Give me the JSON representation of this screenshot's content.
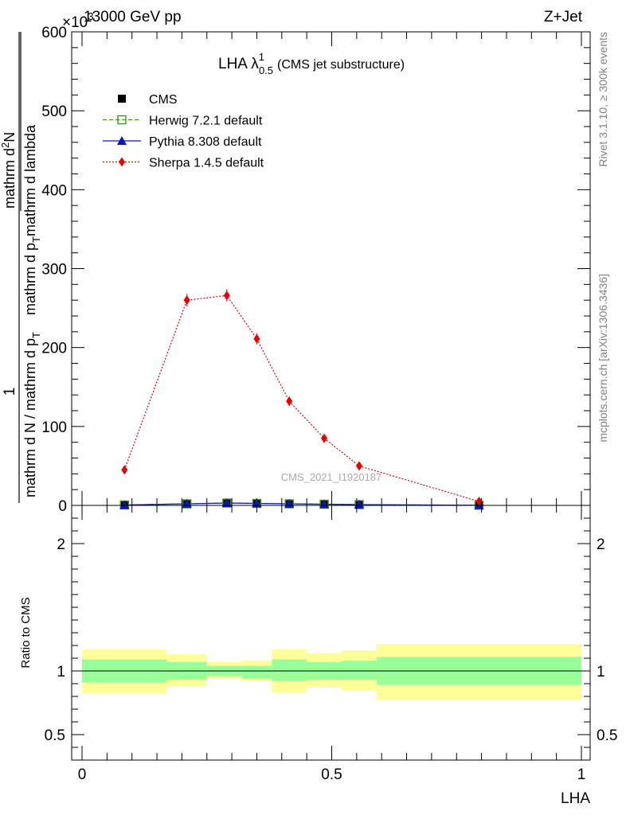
{
  "header": {
    "energy_label": "13000 GeV pp",
    "process_label": "Z+Jet",
    "exponent_label": "×10",
    "exponent_power": "3",
    "side_label_top": "Rivet 3.1.10, ≥ 300k events",
    "side_label_bottom": "mcplots.cern.ch [arXiv:1306.3436]",
    "watermark": "CMS_2021_I1920187"
  },
  "plot_title": {
    "main": "LHA λ",
    "superscript": "1",
    "subscript": "0.5",
    "suffix": "(CMS jet substructure)"
  },
  "y_label_main": {
    "frac_one": "1",
    "frac_den": "mathrm d N / mathrm d p",
    "sub": "T",
    "frac_num2": "mathrm d",
    "sup": "2",
    "frac_num2_rest": "N",
    "frac_den2": "mathrm d p",
    "sub2": "T",
    "frac_den2_rest": "mathrm d lambda"
  },
  "colors": {
    "herwig": "#3a9a18",
    "pythia": "#0a14c8",
    "sherpa": "#e80000",
    "band_inner": "#99ff99",
    "band_outer": "#ffff99"
  },
  "chart_data": [
    {
      "type": "line",
      "title": "LHA λ¹₀.₅ (CMS jet substructure)",
      "xlabel": "LHA",
      "ylabel": "1 / (dN/dpT) · d²N/(dpT dλ)",
      "xlim": [
        0,
        1
      ],
      "ylim": [
        0,
        600
      ],
      "y_scale_factor": "×10^3",
      "y_ticks": [
        0,
        100,
        200,
        300,
        400,
        500,
        600
      ],
      "y_tick_labels": [
        "0",
        "100",
        "200",
        "300",
        "400",
        "500",
        "600"
      ],
      "legend_position": "top-left",
      "series": [
        {
          "name": "CMS",
          "marker": "square",
          "x": [
            0.085,
            0.21,
            0.29,
            0.35,
            0.415,
            0.485,
            0.555,
            0.795
          ],
          "y": [
            0.5,
            2,
            3,
            2.5,
            2,
            1.5,
            1,
            0.2
          ]
        },
        {
          "name": "Herwig 7.2.1 default",
          "marker": "open-square",
          "line": "dashed",
          "x": [
            0.085,
            0.21,
            0.29,
            0.35,
            0.415,
            0.485,
            0.555,
            0.795
          ],
          "y": [
            0.5,
            2,
            3,
            2.5,
            2,
            1.5,
            1,
            0.2
          ]
        },
        {
          "name": "Pythia 8.308 default",
          "marker": "triangle",
          "line": "solid",
          "x": [
            0.085,
            0.21,
            0.29,
            0.35,
            0.415,
            0.485,
            0.555,
            0.795
          ],
          "y": [
            0.5,
            2,
            3,
            2.5,
            2,
            1.5,
            1,
            0.2
          ]
        },
        {
          "name": "Sherpa 1.4.5 default",
          "marker": "diamond",
          "line": "dotted",
          "x": [
            0.085,
            0.21,
            0.29,
            0.35,
            0.415,
            0.485,
            0.555,
            0.795
          ],
          "y": [
            45,
            260,
            266,
            211,
            132,
            85,
            50,
            5
          ],
          "err": [
            3,
            8,
            8,
            7,
            6,
            4,
            3,
            1
          ]
        }
      ]
    },
    {
      "type": "area",
      "title": "",
      "xlabel": "LHA",
      "ylabel": "Ratio to CMS",
      "xlim": [
        0,
        1
      ],
      "ylim": [
        0.3,
        2.3
      ],
      "y_ticks": [
        0.5,
        1,
        2
      ],
      "y_tick_labels": [
        "0.5",
        "1",
        "2"
      ],
      "x_ticks": [
        0,
        0.5,
        1
      ],
      "x_tick_labels": [
        "0",
        "0.5",
        "1"
      ],
      "reference_line": 1,
      "bins": [
        {
          "lo": 0.0,
          "hi": 0.17,
          "inner": [
            0.91,
            1.09
          ],
          "outer": [
            0.82,
            1.17
          ]
        },
        {
          "lo": 0.17,
          "hi": 0.25,
          "inner": [
            0.93,
            1.07
          ],
          "outer": [
            0.88,
            1.13
          ]
        },
        {
          "lo": 0.25,
          "hi": 0.32,
          "inner": [
            0.96,
            1.04
          ],
          "outer": [
            0.94,
            1.07
          ]
        },
        {
          "lo": 0.32,
          "hi": 0.38,
          "inner": [
            0.94,
            1.04
          ],
          "outer": [
            0.92,
            1.08
          ]
        },
        {
          "lo": 0.38,
          "hi": 0.45,
          "inner": [
            0.92,
            1.09
          ],
          "outer": [
            0.83,
            1.17
          ]
        },
        {
          "lo": 0.45,
          "hi": 0.52,
          "inner": [
            0.93,
            1.07
          ],
          "outer": [
            0.87,
            1.14
          ]
        },
        {
          "lo": 0.52,
          "hi": 0.59,
          "inner": [
            0.93,
            1.08
          ],
          "outer": [
            0.85,
            1.16
          ]
        },
        {
          "lo": 0.59,
          "hi": 1.0,
          "inner": [
            0.89,
            1.11
          ],
          "outer": [
            0.77,
            1.21
          ]
        }
      ]
    }
  ]
}
